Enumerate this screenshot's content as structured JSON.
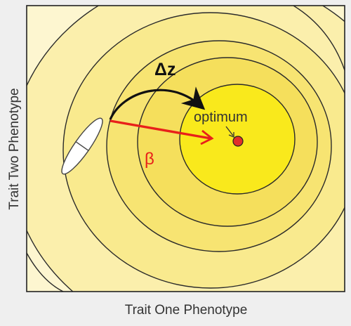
{
  "axes": {
    "x_label": "Trait One Phenotype",
    "y_label": "Trait Two Phenotype"
  },
  "labels": {
    "delta_z": "Δz",
    "beta": "β",
    "optimum": "optimum"
  },
  "colors": {
    "background": "#efefef",
    "outer_fill": "#fdf6d0",
    "ring_1": "#fbefac",
    "ring_2": "#f9ea8e",
    "ring_3": "#f7e472",
    "core_fill": "#f9e91c",
    "contour_stroke": "#2a2a2a",
    "optimum_dot": "#e0302a",
    "selection_arrow": "#e8201a",
    "response_arrow": "#111111",
    "beta_label": "#e8201a"
  },
  "icons": {
    "population": "ellipse-icon",
    "optimum": "dot-icon"
  }
}
